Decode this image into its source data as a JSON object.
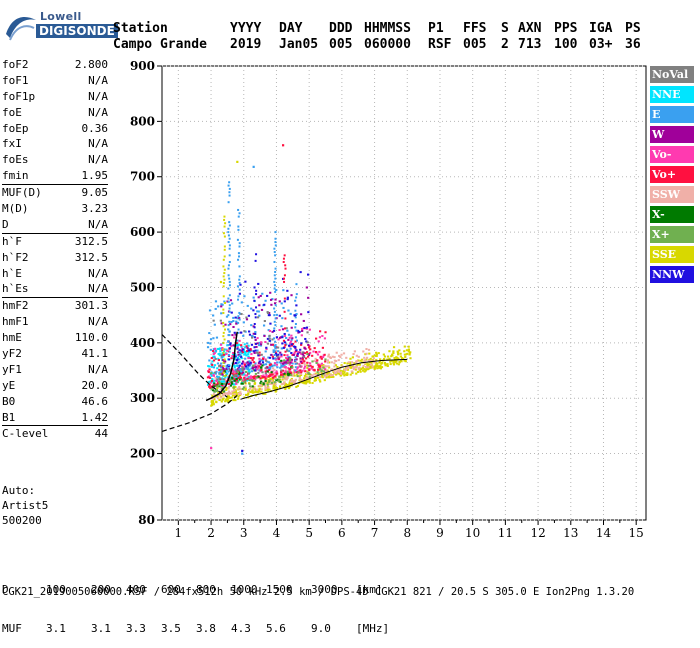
{
  "logo": {
    "line1": "Lowell",
    "line2": "DIGISONDE"
  },
  "header": {
    "labels": [
      "Station",
      "YYYY",
      "DAY",
      "DDD",
      "HHMMSS",
      "P1",
      "FFS",
      "S",
      "AXN",
      "PPS",
      "IGA",
      "PS"
    ],
    "values": [
      "Campo Grande",
      "2019",
      "Jan05",
      "005",
      "060000",
      "RSF",
      "005",
      "2",
      "713",
      "100",
      "03+",
      "36"
    ]
  },
  "params": [
    {
      "name": "foF2",
      "value": "2.800"
    },
    {
      "name": "foF1",
      "value": "N/A"
    },
    {
      "name": "foF1p",
      "value": "N/A"
    },
    {
      "name": "foE",
      "value": "N/A"
    },
    {
      "name": "foEp",
      "value": "0.36"
    },
    {
      "name": "fxI",
      "value": "N/A"
    },
    {
      "name": "foEs",
      "value": "N/A"
    },
    {
      "name": "fmin",
      "value": "1.95"
    },
    {
      "name": "MUF(D)",
      "value": "9.05",
      "sep": true
    },
    {
      "name": "M(D)",
      "value": "3.23"
    },
    {
      "name": "D",
      "value": "N/A"
    },
    {
      "name": "h`F",
      "value": "312.5",
      "sep": true
    },
    {
      "name": "h`F2",
      "value": "312.5"
    },
    {
      "name": "h`E",
      "value": "N/A"
    },
    {
      "name": "h`Es",
      "value": "N/A"
    },
    {
      "name": "hmF2",
      "value": "301.3",
      "sep": true
    },
    {
      "name": "hmF1",
      "value": "N/A"
    },
    {
      "name": "hmE",
      "value": "110.0"
    },
    {
      "name": "yF2",
      "value": "41.1"
    },
    {
      "name": "yF1",
      "value": "N/A"
    },
    {
      "name": "yE",
      "value": "20.0"
    },
    {
      "name": "B0",
      "value": "46.6"
    },
    {
      "name": "B1",
      "value": "1.42"
    },
    {
      "name": "C-level",
      "value": "44",
      "sep": true
    }
  ],
  "auto": [
    "Auto:",
    "Artist5",
    "500200"
  ],
  "legend": [
    {
      "label": "NoVal",
      "color": "#808080"
    },
    {
      "label": "NNE",
      "color": "#00e5ff"
    },
    {
      "label": "E",
      "color": "#3aa0f0"
    },
    {
      "label": "W",
      "color": "#a0009a"
    },
    {
      "label": "Vo-",
      "color": "#ff3ab0"
    },
    {
      "label": "Vo+",
      "color": "#ff1040"
    },
    {
      "label": "SSW",
      "color": "#f0b0a8"
    },
    {
      "label": "X-",
      "color": "#007a00"
    },
    {
      "label": "X+",
      "color": "#70b050"
    },
    {
      "label": "SSE",
      "color": "#d8d800"
    },
    {
      "label": "NNW",
      "color": "#2010e0"
    }
  ],
  "bottom": {
    "row1_label": "D",
    "row1": [
      "100",
      "200",
      "400",
      "600",
      "800",
      "1000",
      "1500",
      "3000",
      "[km]"
    ],
    "row2_label": "MUF",
    "row2": [
      "3.1",
      "3.1",
      "3.3",
      "3.5",
      "3.8",
      "4.3",
      "5.6",
      "9.0",
      "[MHz]"
    ]
  },
  "footer": "CGK21_2019005060000.RSF / 284fx512h 50 kHz 2.5 km / DPS-4D CGK21 821 / 20.5 S 305.0 E Ion2Png 1.3.20",
  "chart_data": {
    "type": "scatter",
    "xlim": [
      0.5,
      15.3
    ],
    "ylim": [
      80,
      900
    ],
    "xticks": [
      1,
      2,
      3,
      4,
      5,
      6,
      7,
      8,
      9,
      10,
      11,
      12,
      13,
      14,
      15
    ],
    "yticks": [
      80,
      200,
      300,
      400,
      500,
      600,
      700,
      800,
      900
    ],
    "grid": true,
    "profile": [
      {
        "x": 2.8,
        "y": 420
      },
      {
        "x": 2.75,
        "y": 400
      },
      {
        "x": 2.7,
        "y": 370
      },
      {
        "x": 2.6,
        "y": 345
      },
      {
        "x": 2.45,
        "y": 322
      },
      {
        "x": 2.25,
        "y": 308
      },
      {
        "x": 2.0,
        "y": 300
      },
      {
        "x": 1.85,
        "y": 296
      }
    ],
    "trace_f2": [
      {
        "x": 2.9,
        "y": 298
      },
      {
        "x": 3.3,
        "y": 305
      },
      {
        "x": 3.8,
        "y": 312
      },
      {
        "x": 4.4,
        "y": 322
      },
      {
        "x": 5.0,
        "y": 335
      },
      {
        "x": 5.5,
        "y": 346
      },
      {
        "x": 6.0,
        "y": 356
      },
      {
        "x": 6.6,
        "y": 364
      },
      {
        "x": 7.2,
        "y": 368
      },
      {
        "x": 8.0,
        "y": 370
      }
    ],
    "dashed_lower": [
      {
        "x": 0.5,
        "y": 240
      },
      {
        "x": 1.3,
        "y": 255
      },
      {
        "x": 2.0,
        "y": 272
      },
      {
        "x": 2.5,
        "y": 290
      },
      {
        "x": 2.8,
        "y": 305
      }
    ],
    "dashed_upper": [
      {
        "x": 0.5,
        "y": 415
      },
      {
        "x": 1.1,
        "y": 378
      },
      {
        "x": 1.6,
        "y": 345
      },
      {
        "x": 2.0,
        "y": 322
      },
      {
        "x": 2.5,
        "y": 302
      }
    ],
    "echo_clusters": [
      {
        "series": "SSE",
        "xmin": 2.0,
        "xmax": 8.1,
        "ybase": 290,
        "yslope": 13,
        "spread": 28,
        "n": 520
      },
      {
        "series": "SSW",
        "xmin": 2.0,
        "xmax": 7.0,
        "ybase": 300,
        "yslope": 12,
        "spread": 35,
        "n": 260
      },
      {
        "series": "NNE",
        "xmin": 1.9,
        "xmax": 3.2,
        "ybase": 320,
        "yslope": 10,
        "spread": 70,
        "n": 170
      },
      {
        "series": "E",
        "xmin": 1.9,
        "xmax": 4.5,
        "ybase": 340,
        "yslope": 8,
        "spread": 140,
        "n": 210
      },
      {
        "series": "Vo-",
        "xmin": 1.9,
        "xmax": 5.5,
        "ybase": 320,
        "yslope": 10,
        "spread": 80,
        "n": 190
      },
      {
        "series": "Vo+",
        "xmin": 1.9,
        "xmax": 5.5,
        "ybase": 320,
        "yslope": 10,
        "spread": 70,
        "n": 170
      },
      {
        "series": "W",
        "xmin": 2.3,
        "xmax": 5.0,
        "ybase": 340,
        "yslope": 12,
        "spread": 140,
        "n": 110
      },
      {
        "series": "NNW",
        "xmin": 2.5,
        "xmax": 5.0,
        "ybase": 350,
        "yslope": 15,
        "spread": 170,
        "n": 90
      },
      {
        "series": "X-",
        "xmin": 2.0,
        "xmax": 4.5,
        "ybase": 310,
        "yslope": 10,
        "spread": 40,
        "n": 50
      },
      {
        "series": "X+",
        "xmin": 2.0,
        "xmax": 5.5,
        "ybase": 310,
        "yslope": 10,
        "spread": 40,
        "n": 70
      },
      {
        "series": "NoVal",
        "xmin": 2.0,
        "xmax": 5.0,
        "ybase": 330,
        "yslope": 10,
        "spread": 120,
        "n": 50
      }
    ],
    "tall_columns": [
      {
        "series": "E",
        "x": 2.55,
        "ymin": 330,
        "ymax": 690
      },
      {
        "series": "E",
        "x": 3.95,
        "ymin": 360,
        "ymax": 600
      },
      {
        "series": "E",
        "x": 2.85,
        "ymin": 340,
        "ymax": 640
      },
      {
        "series": "NNW",
        "x": 3.35,
        "ymin": 350,
        "ymax": 560
      },
      {
        "series": "Vo+",
        "x": 4.25,
        "ymin": 360,
        "ymax": 560
      },
      {
        "series": "E",
        "x": 4.6,
        "ymin": 350,
        "ymax": 520
      },
      {
        "series": "SSE",
        "x": 2.4,
        "ymin": 340,
        "ymax": 630
      }
    ],
    "outliers": [
      {
        "series": "Vo+",
        "x": 4.2,
        "y": 757
      },
      {
        "series": "E",
        "x": 2.95,
        "y": 200
      },
      {
        "series": "NNW",
        "x": 2.95,
        "y": 205
      },
      {
        "series": "Vo-",
        "x": 2.0,
        "y": 210
      },
      {
        "series": "SSE",
        "x": 2.8,
        "y": 727
      },
      {
        "series": "E",
        "x": 3.3,
        "y": 718
      },
      {
        "series": "SSE",
        "x": 2.3,
        "y": 510
      }
    ]
  }
}
